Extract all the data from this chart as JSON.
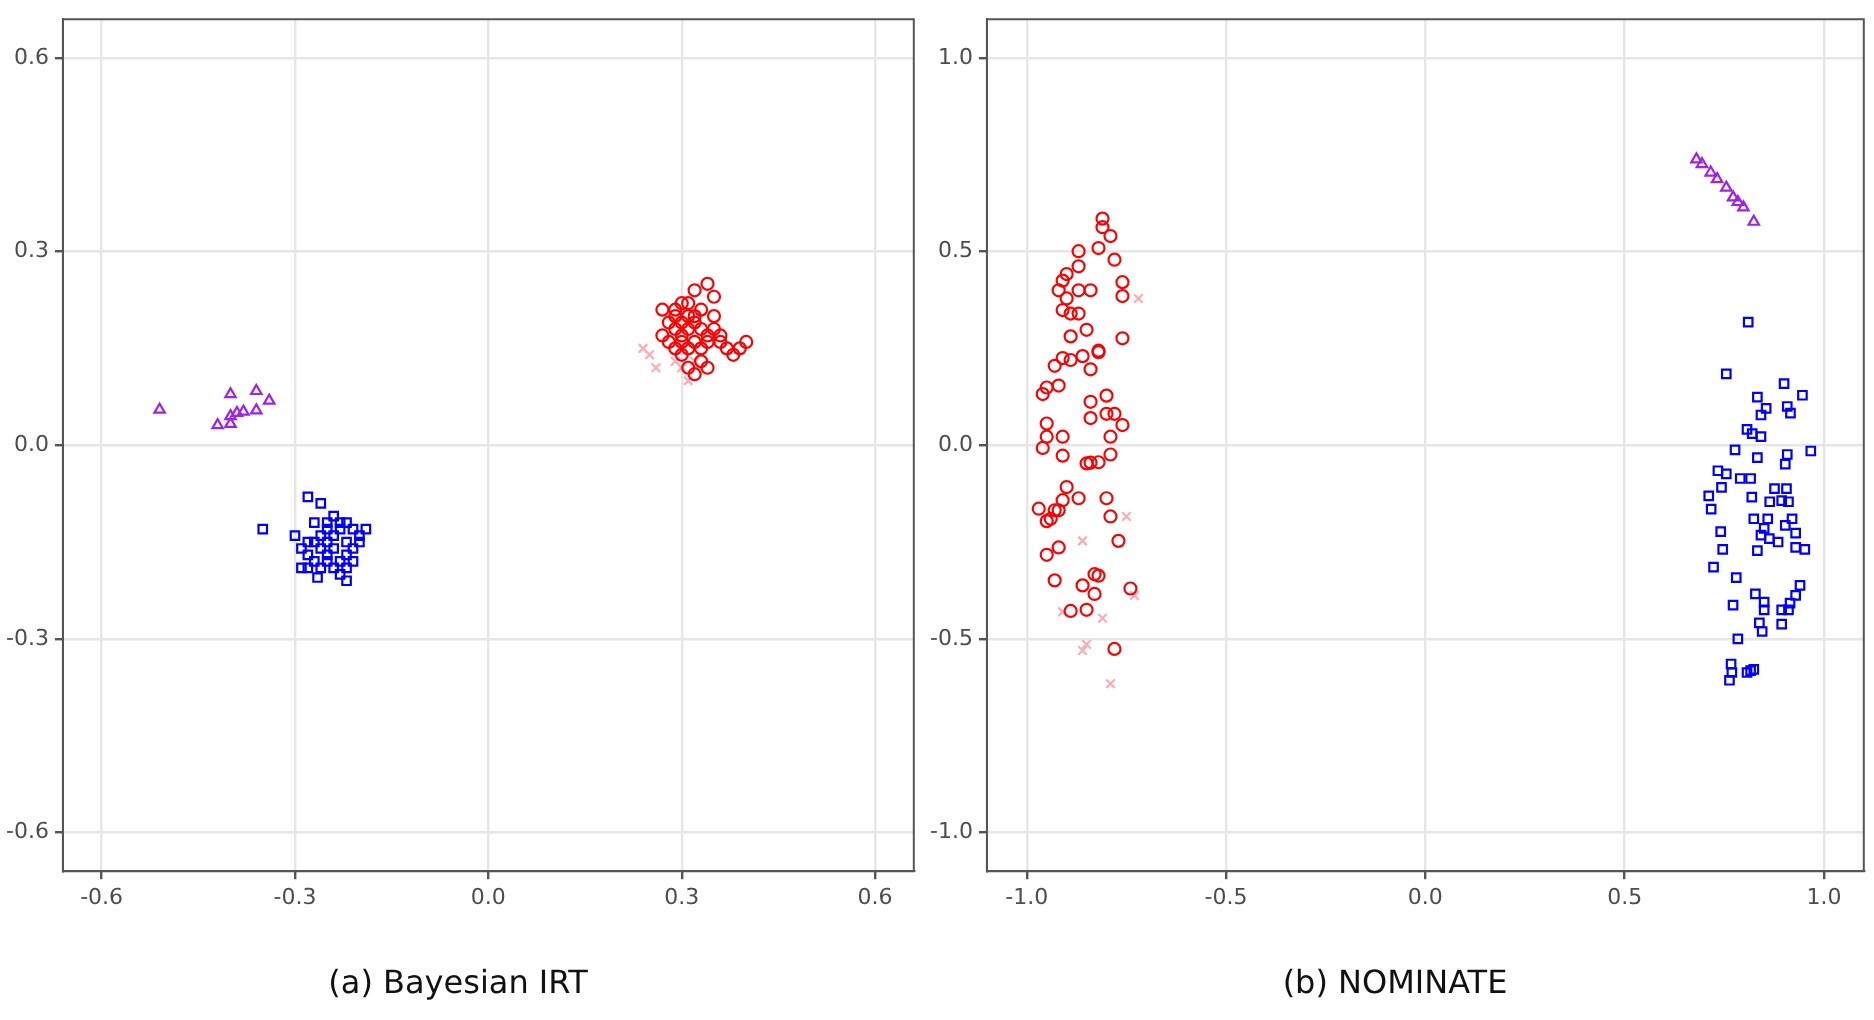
{
  "chart_data": [
    {
      "type": "scatter",
      "title": "(a) Bayesian IRT",
      "xlim": [
        -0.66,
        0.66
      ],
      "ylim": [
        -0.66,
        0.66
      ],
      "xticks": [
        -0.6,
        -0.3,
        {
          "value": 0,
          "label": "0.0"
        },
        0.3,
        0.6
      ],
      "yticks": [
        -0.6,
        -0.3,
        {
          "value": 0,
          "label": "0.0"
        },
        0.3,
        0.6
      ],
      "grid": true,
      "legend": false,
      "series": [
        {
          "color": "#ff0000",
          "marker": "circle",
          "x": [
            0.27,
            0.29,
            0.32,
            0.34,
            0.35,
            0.3,
            0.31,
            0.33,
            0.28,
            0.29,
            0.3,
            0.31,
            0.32,
            0.33,
            0.34,
            0.35,
            0.36,
            0.28,
            0.29,
            0.3,
            0.31,
            0.32,
            0.33,
            0.34,
            0.36,
            0.37,
            0.38,
            0.4,
            0.39,
            0.31,
            0.32,
            0.34,
            0.3,
            0.33,
            0.27,
            0.32,
            0.3,
            0.35,
            0.29,
            0.31
          ],
          "values": [
            0.21,
            0.21,
            0.24,
            0.25,
            0.23,
            0.22,
            0.2,
            0.21,
            0.19,
            0.18,
            0.17,
            0.18,
            0.19,
            0.18,
            0.17,
            0.18,
            0.17,
            0.16,
            0.15,
            0.16,
            0.15,
            0.16,
            0.15,
            0.16,
            0.16,
            0.15,
            0.14,
            0.16,
            0.15,
            0.12,
            0.11,
            0.12,
            0.14,
            0.13,
            0.17,
            0.2,
            0.19,
            0.2,
            0.2,
            0.22
          ]
        },
        {
          "color": "#ffaab4",
          "marker": "cross",
          "x": [
            0.24,
            0.25,
            0.26,
            0.29,
            0.31,
            0.3,
            0.32
          ],
          "values": [
            0.15,
            0.14,
            0.12,
            0.13,
            0.1,
            0.12,
            0.13
          ]
        },
        {
          "color": "#0000ff",
          "marker": "square",
          "x": [
            -0.28,
            -0.26,
            -0.35,
            -0.29,
            -0.22,
            -0.19,
            -0.21,
            -0.27,
            -0.25,
            -0.24,
            -0.23,
            -0.22,
            -0.26,
            -0.25,
            -0.24,
            -0.23,
            -0.21,
            -0.2,
            -0.28,
            -0.27,
            -0.26,
            -0.25,
            -0.24,
            -0.22,
            -0.3,
            -0.29,
            -0.28,
            -0.27,
            -0.25,
            -0.23,
            -0.22,
            -0.21,
            -0.26,
            -0.24,
            -0.23,
            -0.28,
            -0.25,
            -0.22,
            -0.2,
            -0.265
          ],
          "values": [
            -0.08,
            -0.09,
            -0.13,
            -0.19,
            -0.21,
            -0.13,
            -0.18,
            -0.12,
            -0.12,
            -0.11,
            -0.12,
            -0.12,
            -0.14,
            -0.13,
            -0.14,
            -0.13,
            -0.13,
            -0.14,
            -0.15,
            -0.15,
            -0.16,
            -0.15,
            -0.16,
            -0.15,
            -0.14,
            -0.16,
            -0.17,
            -0.18,
            -0.17,
            -0.18,
            -0.17,
            -0.16,
            -0.19,
            -0.19,
            -0.2,
            -0.19,
            -0.18,
            -0.19,
            -0.15,
            -0.205
          ]
        },
        {
          "color": "#a020f0",
          "marker": "triangle",
          "x": [
            -0.51,
            -0.4,
            -0.36,
            -0.34,
            -0.42,
            -0.4,
            -0.4,
            -0.39,
            -0.38,
            -0.36
          ],
          "values": [
            0.055,
            0.079,
            0.084,
            0.069,
            0.031,
            0.033,
            0.045,
            0.05,
            0.052,
            0.054
          ]
        }
      ]
    },
    {
      "type": "scatter",
      "title": "(b) NOMINATE",
      "xlim": [
        -1.1,
        1.1
      ],
      "ylim": [
        -1.1,
        1.1
      ],
      "xticks": [
        {
          "value": -1,
          "label": "-1.0"
        },
        -0.5,
        {
          "value": 0,
          "label": "0.0"
        },
        0.5,
        {
          "value": 1,
          "label": "1.0"
        }
      ],
      "yticks": [
        {
          "value": -1,
          "label": "-1.0"
        },
        -0.5,
        {
          "value": 0,
          "label": "0.0"
        },
        0.5,
        {
          "value": 1,
          "label": "1.0"
        }
      ],
      "grid": true,
      "legend": false,
      "series": [
        {
          "color": "#ff0000",
          "marker": "circle",
          "x": [
            -0.81,
            -0.81,
            -0.79,
            -0.82,
            -0.87,
            -0.78,
            -0.87,
            -0.9,
            -0.91,
            -0.92,
            -0.87,
            -0.84,
            -0.76,
            -0.76,
            -0.9,
            -0.91,
            -0.87,
            -0.89,
            -0.76,
            -0.89,
            -0.85,
            -0.82,
            -0.82,
            -0.86,
            -0.89,
            -0.91,
            -0.93,
            -0.84,
            -0.92,
            -0.95,
            -0.96,
            -0.8,
            -0.84,
            -0.8,
            -0.78,
            -0.84,
            -0.76,
            -0.95,
            -0.95,
            -0.91,
            -0.79,
            -0.96,
            -0.91,
            -0.79,
            -0.82,
            -0.84,
            -0.85,
            -0.9,
            -0.91,
            -0.87,
            -0.8,
            -0.97,
            -0.93,
            -0.92,
            -0.94,
            -0.95,
            -0.79,
            -0.77,
            -0.92,
            -0.95,
            -0.83,
            -0.82,
            -0.93,
            -0.86,
            -0.74,
            -0.83,
            -0.89,
            -0.85,
            -0.78
          ],
          "values": [
            0.585,
            0.563,
            0.54,
            0.509,
            0.501,
            0.479,
            0.462,
            0.442,
            0.425,
            0.4,
            0.4,
            0.4,
            0.421,
            0.385,
            0.379,
            0.349,
            0.34,
            0.34,
            0.276,
            0.281,
            0.298,
            0.244,
            0.24,
            0.23,
            0.22,
            0.225,
            0.205,
            0.196,
            0.154,
            0.149,
            0.132,
            0.128,
            0.112,
            0.081,
            0.081,
            0.07,
            0.052,
            0.056,
            0.022,
            0.022,
            0.022,
            -0.007,
            -0.027,
            -0.024,
            -0.044,
            -0.045,
            -0.047,
            -0.108,
            -0.142,
            -0.137,
            -0.137,
            -0.164,
            -0.168,
            -0.168,
            -0.19,
            -0.196,
            -0.184,
            -0.247,
            -0.264,
            -0.283,
            -0.333,
            -0.337,
            -0.349,
            -0.362,
            -0.37,
            -0.384,
            -0.428,
            -0.425,
            -0.526
          ]
        },
        {
          "color": "#ffaab4",
          "marker": "cross",
          "x": [
            -0.72,
            -0.75,
            -0.86,
            -0.73,
            -0.91,
            -0.81,
            -0.85,
            -0.86,
            -0.79
          ],
          "values": [
            0.379,
            -0.184,
            -0.247,
            -0.388,
            -0.43,
            -0.447,
            -0.514,
            -0.53,
            -0.616
          ]
        },
        {
          "color": "#0000ff",
          "marker": "square",
          "x": [
            0.81,
            0.755,
            0.9,
            0.946,
            0.833,
            0.855,
            0.842,
            0.908,
            0.916,
            0.807,
            0.82,
            0.842,
            0.777,
            0.833,
            0.908,
            0.903,
            0.967,
            0.734,
            0.755,
            0.79,
            0.816,
            0.743,
            0.711,
            0.717,
            0.819,
            0.876,
            0.906,
            0.864,
            0.894,
            0.911,
            0.824,
            0.859,
            0.92,
            0.903,
            0.85,
            0.863,
            0.842,
            0.885,
            0.929,
            0.929,
            0.952,
            0.741,
            0.746,
            0.833,
            0.723,
            0.78,
            0.94,
            0.929,
            0.828,
            0.772,
            0.85,
            0.85,
            0.915,
            0.894,
            0.911,
            0.838,
            0.894,
            0.845,
            0.784,
            0.767,
            0.769,
            0.763,
            0.807,
            0.824,
            0.816
          ],
          "values": [
            0.318,
            0.184,
            0.159,
            0.129,
            0.124,
            0.095,
            0.078,
            0.1,
            0.083,
            0.041,
            0.03,
            0.022,
            -0.012,
            -0.032,
            -0.024,
            -0.049,
            -0.015,
            -0.066,
            -0.074,
            -0.086,
            -0.086,
            -0.109,
            -0.131,
            -0.165,
            -0.134,
            -0.112,
            -0.112,
            -0.146,
            -0.143,
            -0.146,
            -0.19,
            -0.19,
            -0.19,
            -0.207,
            -0.215,
            -0.241,
            -0.232,
            -0.25,
            -0.227,
            -0.264,
            -0.269,
            -0.223,
            -0.269,
            -0.272,
            -0.315,
            -0.342,
            -0.362,
            -0.388,
            -0.384,
            -0.413,
            -0.405,
            -0.425,
            -0.408,
            -0.425,
            -0.425,
            -0.459,
            -0.462,
            -0.481,
            -0.5,
            -0.565,
            -0.587,
            -0.607,
            -0.587,
            -0.579,
            -0.582
          ]
        },
        {
          "color": "#a020f0",
          "marker": "triangle",
          "x": [
            0.68,
            0.694,
            0.716,
            0.732,
            0.755,
            0.772,
            0.784,
            0.798,
            0.824
          ],
          "values": [
            0.738,
            0.726,
            0.704,
            0.687,
            0.665,
            0.64,
            0.628,
            0.614,
            0.577
          ]
        }
      ]
    }
  ]
}
